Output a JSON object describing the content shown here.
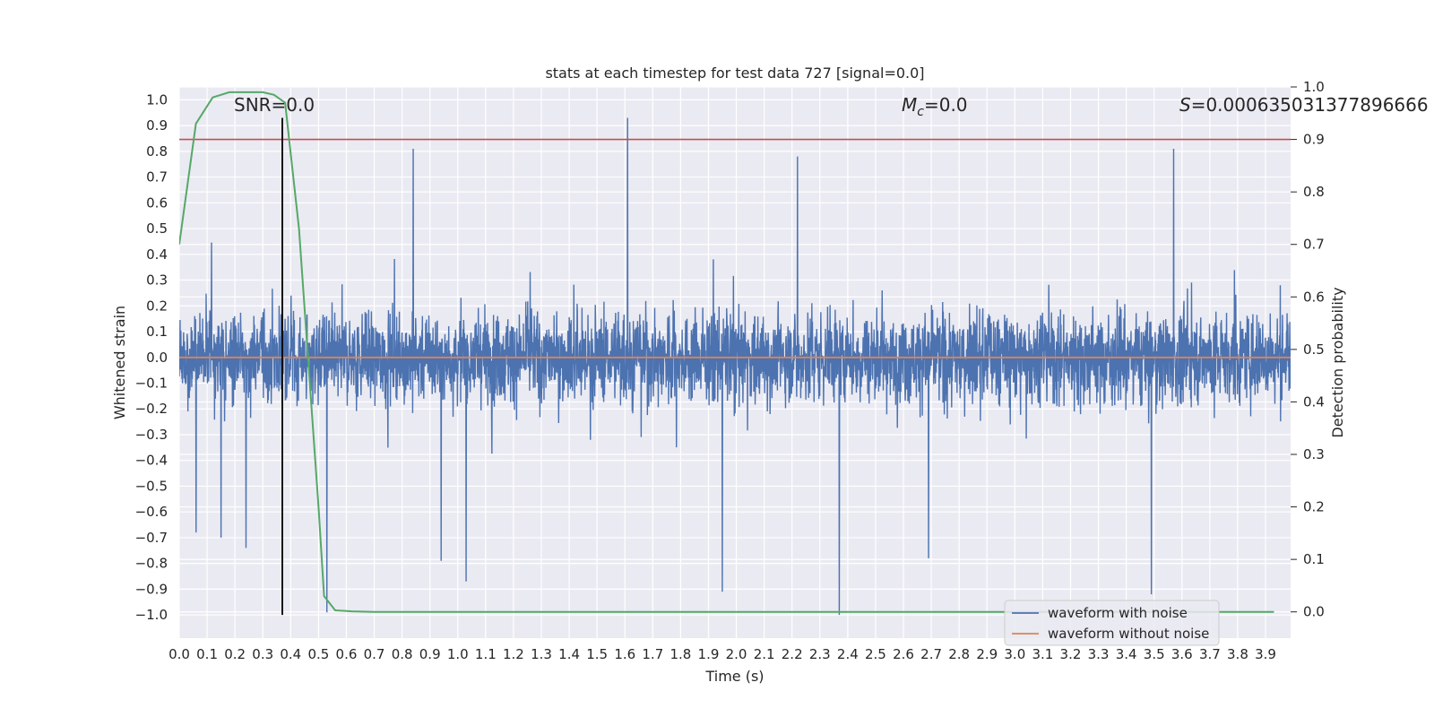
{
  "chart_data": {
    "type": "line",
    "title": "stats at each timestep for test data 727 [signal=0.0]",
    "xlabel": "Time (s)",
    "ylabel": "Whitened strain",
    "y2label": "Detection probability",
    "xlim": [
      0.0,
      3.99
    ],
    "ylim": [
      -1.09,
      1.05
    ],
    "y2lim": [
      -0.05,
      1.0
    ],
    "x_ticks": [
      "0.0",
      "0.1",
      "0.2",
      "0.3",
      "0.4",
      "0.5",
      "0.6",
      "0.7",
      "0.8",
      "0.9",
      "1.0",
      "1.1",
      "1.2",
      "1.3",
      "1.4",
      "1.5",
      "1.6",
      "1.7",
      "1.8",
      "1.9",
      "2.0",
      "2.1",
      "2.2",
      "2.3",
      "2.4",
      "2.5",
      "2.6",
      "2.7",
      "2.8",
      "2.9",
      "3.0",
      "3.1",
      "3.2",
      "3.3",
      "3.4",
      "3.5",
      "3.6",
      "3.7",
      "3.8",
      "3.9"
    ],
    "y_ticks": [
      "1.0",
      "0.9",
      "0.8",
      "0.7",
      "0.6",
      "0.5",
      "0.4",
      "0.3",
      "0.2",
      "0.1",
      "0.0",
      "−0.1",
      "−0.2",
      "−0.3",
      "−0.4",
      "−0.5",
      "−0.6",
      "−0.7",
      "−0.8",
      "−0.9",
      "−1.0"
    ],
    "y2_ticks": [
      "1.0",
      "0.9",
      "0.8",
      "0.7",
      "0.6",
      "0.5",
      "0.4",
      "0.3",
      "0.2",
      "0.1",
      "0.0"
    ],
    "annotations": {
      "snr": "SNR=0.0",
      "mc_symbol": "M",
      "mc_sub": "c",
      "mc_value": "=0.0",
      "s_symbol": "S",
      "s_value": "=0.000635031377896666"
    },
    "series": [
      {
        "name": "waveform with noise",
        "color": "#4c72b0",
        "description": "whitened noise samples over 0-3.99 s, mostly within ±0.4, spikes up to ~0.93 and down to ~−1.0",
        "peaks": [
          {
            "x": 0.37,
            "y": 0.77
          },
          {
            "x": 0.84,
            "y": 0.81
          },
          {
            "x": 1.61,
            "y": 0.93
          },
          {
            "x": 2.22,
            "y": 0.78
          },
          {
            "x": 3.57,
            "y": 0.81
          },
          {
            "x": 0.06,
            "y": -0.68
          },
          {
            "x": 0.15,
            "y": -0.7
          },
          {
            "x": 0.24,
            "y": -0.74
          },
          {
            "x": 0.53,
            "y": -0.99
          },
          {
            "x": 0.94,
            "y": -0.79
          },
          {
            "x": 1.03,
            "y": -0.87
          },
          {
            "x": 1.95,
            "y": -0.91
          },
          {
            "x": 2.37,
            "y": -1.0
          },
          {
            "x": 2.69,
            "y": -0.78
          },
          {
            "x": 3.49,
            "y": -0.92
          }
        ]
      },
      {
        "name": "waveform without noise",
        "color": "#dd8452",
        "x": [
          0.0,
          3.99
        ],
        "y": [
          0.0,
          0.0
        ]
      },
      {
        "name": "detection probability",
        "color": "#55a868",
        "axis": "right",
        "x": [
          0.0,
          0.06,
          0.12,
          0.18,
          0.24,
          0.3,
          0.34,
          0.38,
          0.43,
          0.48,
          0.5,
          0.52,
          0.56,
          0.62,
          0.7,
          1.0,
          2.0,
          3.0,
          3.93
        ],
        "y": [
          0.7,
          0.93,
          0.98,
          0.99,
          0.99,
          0.99,
          0.985,
          0.97,
          0.73,
          0.35,
          0.2,
          0.03,
          0.003,
          0.001,
          0.0,
          0.0,
          0.0,
          0.0,
          0.0
        ]
      },
      {
        "name": "threshold",
        "color": "#c44e52",
        "axis": "right",
        "x": [
          0.0,
          3.99
        ],
        "y": [
          0.9,
          0.9
        ]
      },
      {
        "name": "detection marker",
        "color": "#000000",
        "x": [
          0.37,
          0.37
        ],
        "y": [
          -1.0,
          0.93
        ]
      }
    ],
    "legend": {
      "location": "lower-right",
      "entries": [
        {
          "label": "waveform with noise",
          "color": "#4c72b0"
        },
        {
          "label": "waveform without noise",
          "color": "#dd8452"
        }
      ]
    },
    "grid": true,
    "background": "#eaeaf2"
  }
}
